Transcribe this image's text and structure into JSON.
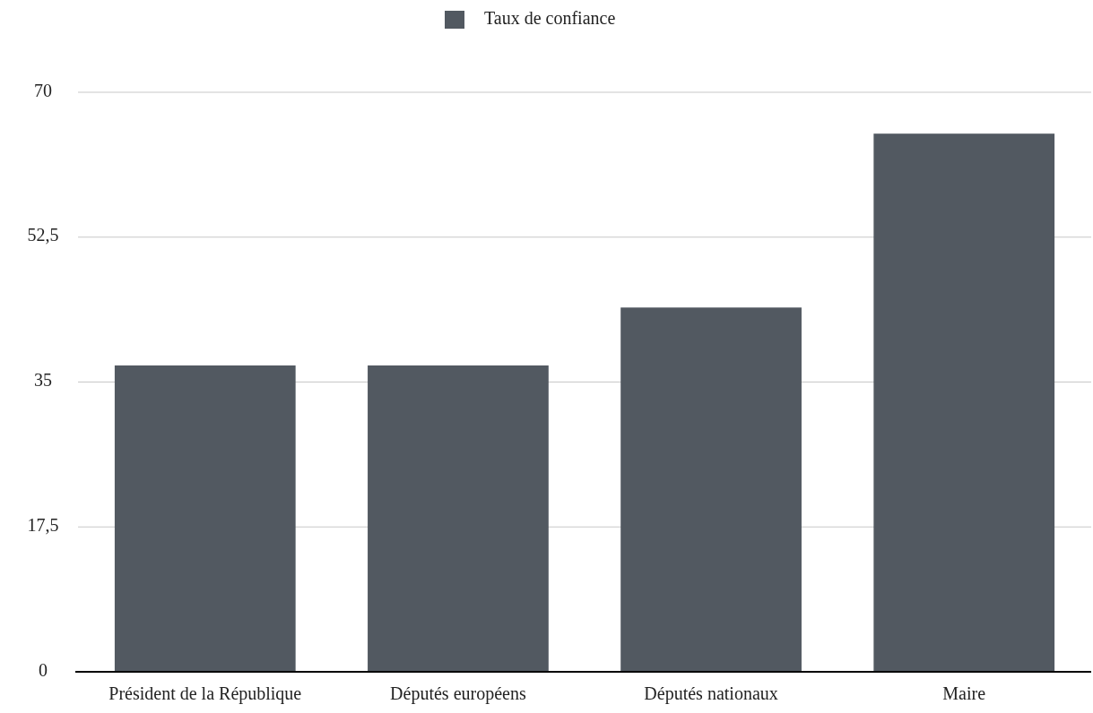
{
  "chart_data": {
    "type": "bar",
    "categories": [
      "Président de la République",
      "Députés européens",
      "Députés nationaux",
      "Maire"
    ],
    "series": [
      {
        "name": "Taux de confiance",
        "color": "#525961",
        "values": [
          37,
          37,
          44,
          65
        ]
      }
    ],
    "ylim": [
      0,
      70
    ],
    "yticks": [
      0,
      {
        "value": 17.5,
        "label": "17,5"
      },
      35,
      {
        "value": 52.5,
        "label": "52,5"
      },
      70
    ],
    "grid": "y",
    "legend": "top"
  }
}
